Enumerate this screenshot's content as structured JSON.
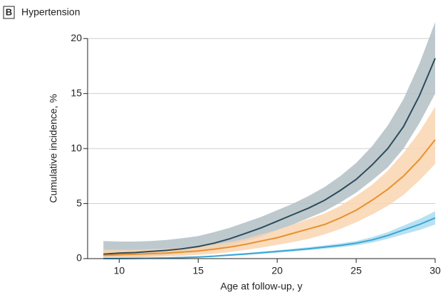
{
  "chart_data": {
    "type": "line",
    "panel_label": "B",
    "title": "Hypertension",
    "y_label": "Cumulative incidence, %",
    "x_label": "Age at follow-up, y",
    "x": [
      9,
      10,
      11,
      12,
      13,
      14,
      15,
      16,
      17,
      18,
      19,
      20,
      21,
      22,
      23,
      24,
      25,
      26,
      27,
      28,
      29,
      30
    ],
    "xlim": [
      8,
      30
    ],
    "xticks": [
      10,
      15,
      20,
      25,
      30
    ],
    "ylim": [
      0,
      21.5
    ],
    "yticks": [
      0,
      5,
      10,
      15,
      20
    ],
    "grid": true,
    "series": [
      {
        "color": "#2d4b5a",
        "band_color": "#b3c0c5",
        "values": [
          0.4,
          0.5,
          0.55,
          0.65,
          0.75,
          0.9,
          1.1,
          1.4,
          1.8,
          2.3,
          2.8,
          3.4,
          4.0,
          4.6,
          5.3,
          6.2,
          7.2,
          8.5,
          10.0,
          12.0,
          14.8,
          18.2
        ],
        "lower": [
          0,
          0.05,
          0.1,
          0.2,
          0.3,
          0.45,
          0.6,
          0.85,
          1.2,
          1.6,
          2.0,
          2.6,
          3.1,
          3.7,
          4.3,
          5.1,
          6.0,
          7.1,
          8.3,
          10.0,
          12.3,
          15.0
        ],
        "upper": [
          1.6,
          1.55,
          1.55,
          1.6,
          1.7,
          1.85,
          2.05,
          2.4,
          2.8,
          3.3,
          3.8,
          4.4,
          5.0,
          5.7,
          6.5,
          7.5,
          8.7,
          10.2,
          12.1,
          14.5,
          17.7,
          21.5
        ]
      },
      {
        "color": "#e8912e",
        "band_color": "#f9d5b0",
        "values": [
          0.3,
          0.35,
          0.4,
          0.45,
          0.5,
          0.6,
          0.7,
          0.85,
          1.05,
          1.3,
          1.6,
          1.9,
          2.3,
          2.7,
          3.1,
          3.7,
          4.4,
          5.3,
          6.3,
          7.5,
          9.0,
          10.8
        ],
        "lower": [
          0,
          0.05,
          0.1,
          0.15,
          0.2,
          0.25,
          0.35,
          0.45,
          0.6,
          0.8,
          1.0,
          1.25,
          1.5,
          1.8,
          2.2,
          2.7,
          3.3,
          4.0,
          4.8,
          5.8,
          7.1,
          8.6
        ],
        "upper": [
          0.8,
          0.8,
          0.8,
          0.85,
          0.9,
          1.0,
          1.1,
          1.3,
          1.5,
          1.8,
          2.2,
          2.6,
          3.1,
          3.6,
          4.1,
          4.8,
          5.7,
          6.7,
          8.0,
          9.6,
          11.5,
          13.8
        ]
      },
      {
        "color": "#3aa6d8",
        "band_color": "#acdcef",
        "values": [
          0,
          0,
          0.02,
          0.04,
          0.06,
          0.1,
          0.15,
          0.22,
          0.32,
          0.42,
          0.53,
          0.65,
          0.77,
          0.9,
          1.05,
          1.2,
          1.4,
          1.7,
          2.1,
          2.6,
          3.1,
          3.7
        ],
        "lower": [
          0,
          0,
          0,
          0.01,
          0.03,
          0.06,
          0.1,
          0.16,
          0.24,
          0.33,
          0.43,
          0.54,
          0.65,
          0.77,
          0.9,
          1.03,
          1.2,
          1.45,
          1.8,
          2.2,
          2.6,
          3.1
        ],
        "upper": [
          0.05,
          0.06,
          0.08,
          0.1,
          0.12,
          0.16,
          0.21,
          0.29,
          0.4,
          0.51,
          0.63,
          0.76,
          0.9,
          1.04,
          1.2,
          1.38,
          1.6,
          1.95,
          2.4,
          3.0,
          3.6,
          4.3
        ]
      }
    ]
  }
}
